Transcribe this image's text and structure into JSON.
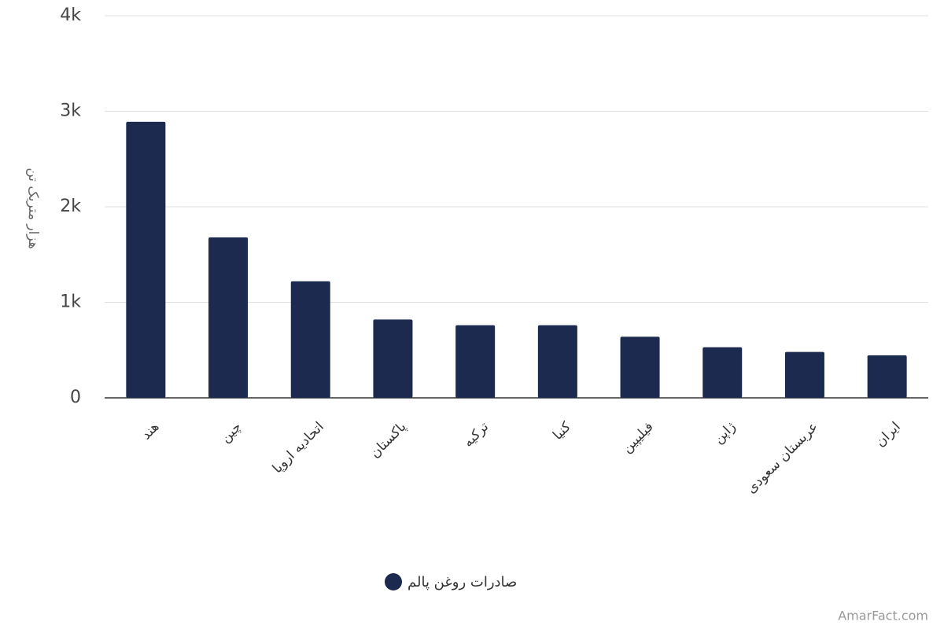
{
  "chart_data": {
    "type": "bar",
    "y_label": "هزار متریک تن",
    "categories": [
      "هند",
      "چین",
      "اتحادیه اروپا",
      "پاکستان",
      "ترکیه",
      "کنیا",
      "فیلیپین",
      "ژاپن",
      "عربستان سعودی",
      "ایران"
    ],
    "series": [
      {
        "name": "صادرات روغن پالم",
        "color": "#1b2a4e",
        "values": [
          2890,
          1680,
          1220,
          820,
          760,
          760,
          640,
          530,
          480,
          445
        ]
      }
    ],
    "ylim": [
      0,
      4000
    ],
    "yticks": [
      0,
      {
        "value": 1000,
        "label": "1k"
      },
      {
        "value": 2000,
        "label": "2k"
      },
      {
        "value": 3000,
        "label": "3k"
      },
      {
        "value": 4000,
        "label": "4k"
      }
    ],
    "grid": true,
    "legend": "bottom",
    "watermark": "AmarFact.com"
  }
}
